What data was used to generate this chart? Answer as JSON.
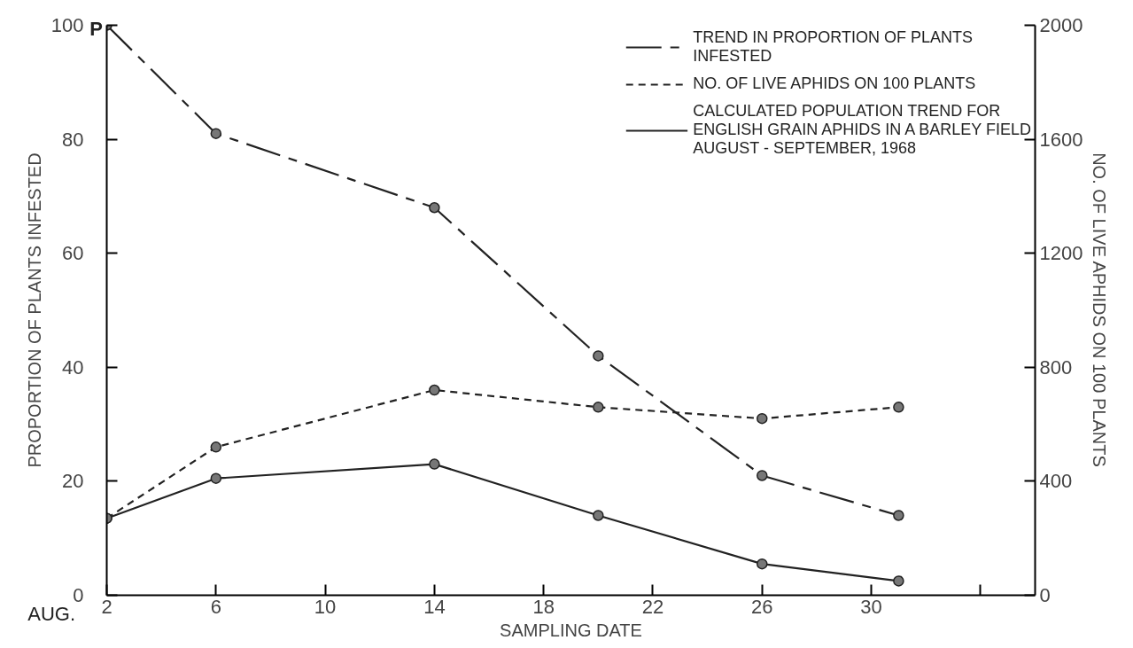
{
  "chart_data": {
    "type": "line",
    "x": [
      2,
      6,
      14,
      20,
      26,
      31
    ],
    "xlabel": "SAMPLING DATE",
    "ylabel": "PROPORTION OF PLANTS INFESTED",
    "y2label": "NO. OF LIVE APHIDS ON 100 PLANTS",
    "xlim": [
      2,
      36
    ],
    "xticks": [
      2,
      6,
      10,
      14,
      18,
      22,
      26,
      30,
      {
        "value": 34,
        "label": null
      }
    ],
    "ylim": [
      0,
      100
    ],
    "yticks": [
      0,
      20,
      40,
      60,
      80,
      100
    ],
    "y2lim": [
      0,
      2000
    ],
    "y2ticks": [
      0,
      400,
      800,
      1200,
      1600,
      2000
    ],
    "series": [
      {
        "name": "TREND IN PROPORTION OF PLANTS\nINFESTED",
        "color": "#222222",
        "line_style": "dashdot",
        "values": [
          100,
          81,
          68,
          42,
          21,
          14
        ]
      },
      {
        "name": "NO. OF LIVE APHIDS ON 100 PLANTS",
        "color": "#222222",
        "line_style": "dashed",
        "axis": "y2",
        "values": [
          270,
          520,
          720,
          660,
          620,
          660
        ]
      },
      {
        "name": "CALCULATED POPULATION TREND FOR\nENGLISH GRAIN APHIDS IN A BARLEY FIELD\nAUGUST - SEPTEMBER, 1968",
        "color": "#222222",
        "line_style": "solid",
        "axis": "y2",
        "values": [
          270,
          410,
          460,
          280,
          110,
          50
        ]
      }
    ],
    "marker": "circle",
    "grid": false,
    "legend": "top right",
    "annotations": [
      "AUG.",
      {
        "text": "P",
        "x": 2,
        "y": 100
      }
    ]
  }
}
